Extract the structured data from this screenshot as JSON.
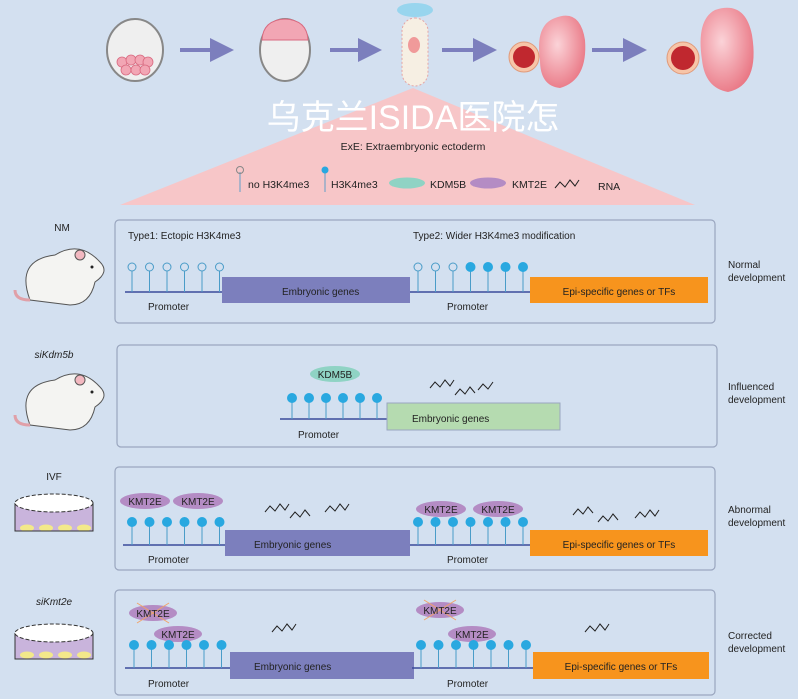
{
  "exe_title": "ExE: Extraembryonic ectoderm",
  "legend": {
    "no_h3k4me3": "no H3K4me3",
    "h3k4me3": "H3K4me3",
    "kdm5b": "KDM5B",
    "kmt2e": "KMT2E",
    "rna": "RNA"
  },
  "colors": {
    "background": "#d3e0f0",
    "embryonic_genes": "#7c7fbd",
    "embryonic_genes_influenced": "#b5dbb0",
    "epi_genes": "#f7941d",
    "h3k4me3": "#29a8e0",
    "kmt2e": "#b48cc4",
    "kdm5b": "#8fd3c4",
    "triangle": "#f7c6c8"
  },
  "panels": [
    {
      "group": "NM",
      "outcome_line1": "Normal",
      "outcome_line2": "development",
      "type1": "Type1: Ectopic H3K4me3",
      "type2": "Type2: Wider H3K4me3 modification",
      "left_pins": [
        "open",
        "open",
        "open",
        "open",
        "open",
        "open"
      ],
      "right_pins": [
        "open",
        "open",
        "open",
        "filled",
        "filled",
        "filled",
        "filled"
      ],
      "left_gene": "Embryonic genes",
      "right_gene": "Epi-specific genes or TFs",
      "promoter": "Promoter"
    },
    {
      "group": "siKdm5b",
      "outcome_line1": "Influenced",
      "outcome_line2": "development",
      "protein": "KDM5B",
      "left_pins": [
        "filled",
        "filled",
        "filled",
        "filled",
        "filled",
        "filled"
      ],
      "left_gene": "Embryonic genes",
      "promoter": "Promoter"
    },
    {
      "group": "IVF",
      "outcome_line1": "Abnormal",
      "outcome_line2": "development",
      "protein": "KMT2E",
      "left_pins": [
        "filled",
        "filled",
        "filled",
        "filled",
        "filled",
        "filled"
      ],
      "right_pins": [
        "filled",
        "filled",
        "filled",
        "filled",
        "filled",
        "filled",
        "filled"
      ],
      "left_gene": "Embryonic genes",
      "right_gene": "Epi-specific genes or TFs",
      "promoter": "Promoter"
    },
    {
      "group": "siKmt2e",
      "outcome_line1": "Corrected",
      "outcome_line2": "development",
      "protein": "KMT2E",
      "left_pins": [
        "filled",
        "filled",
        "filled",
        "filled",
        "filled",
        "filled"
      ],
      "right_pins": [
        "filled",
        "filled",
        "filled",
        "filled",
        "filled",
        "filled",
        "filled"
      ],
      "left_gene": "Embryonic genes",
      "right_gene": "Epi-specific genes or TFs",
      "promoter": "Promoter"
    }
  ],
  "watermark": "乌克兰ISIDA医院怎"
}
